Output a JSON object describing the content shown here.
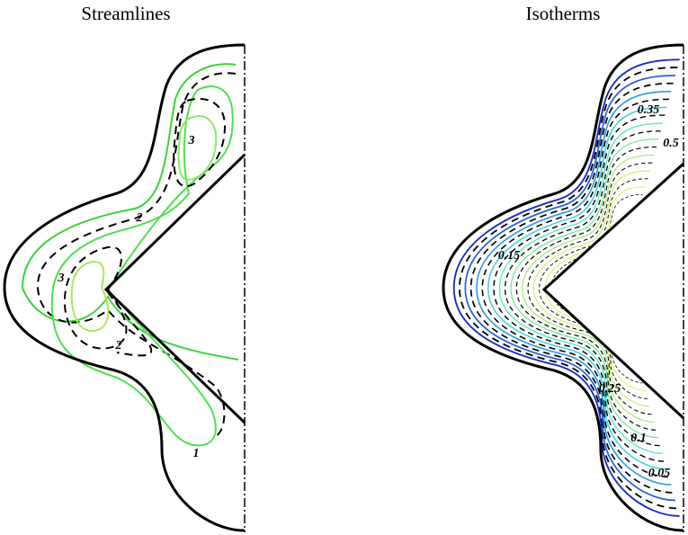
{
  "panels": [
    {
      "title": "Streamlines",
      "labels": [
        "3",
        "2",
        "3",
        "2",
        "1"
      ]
    },
    {
      "title": "Isotherms",
      "labels": [
        "0.35",
        "0.5",
        "0.15",
        "0.25",
        "0.1",
        "0.05"
      ]
    }
  ]
}
